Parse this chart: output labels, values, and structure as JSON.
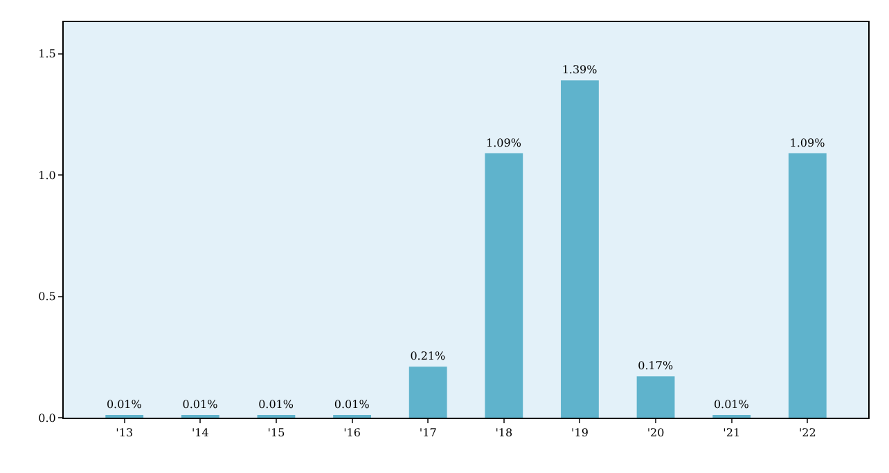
{
  "chart_data": {
    "type": "bar",
    "categories": [
      "'13",
      "'14",
      "'15",
      "'16",
      "'17",
      "'18",
      "'19",
      "'20",
      "'21",
      "'22"
    ],
    "values": [
      0.01,
      0.01,
      0.01,
      0.01,
      0.21,
      1.09,
      1.39,
      0.17,
      0.01,
      1.09
    ],
    "value_labels": [
      "0.01%",
      "0.01%",
      "0.01%",
      "0.01%",
      "0.21%",
      "1.09%",
      "1.39%",
      "0.17%",
      "0.01%",
      "1.09%"
    ],
    "color": "#5fb3cc",
    "ylim": [
      0,
      1.63
    ],
    "yticks": [
      {
        "value": 0,
        "label": "0.0"
      },
      {
        "value": 0.5,
        "label": "0.5"
      },
      {
        "value": 1,
        "label": "1.0"
      },
      {
        "value": 1.5,
        "label": "1.5"
      }
    ],
    "grid": false,
    "legend": false
  }
}
